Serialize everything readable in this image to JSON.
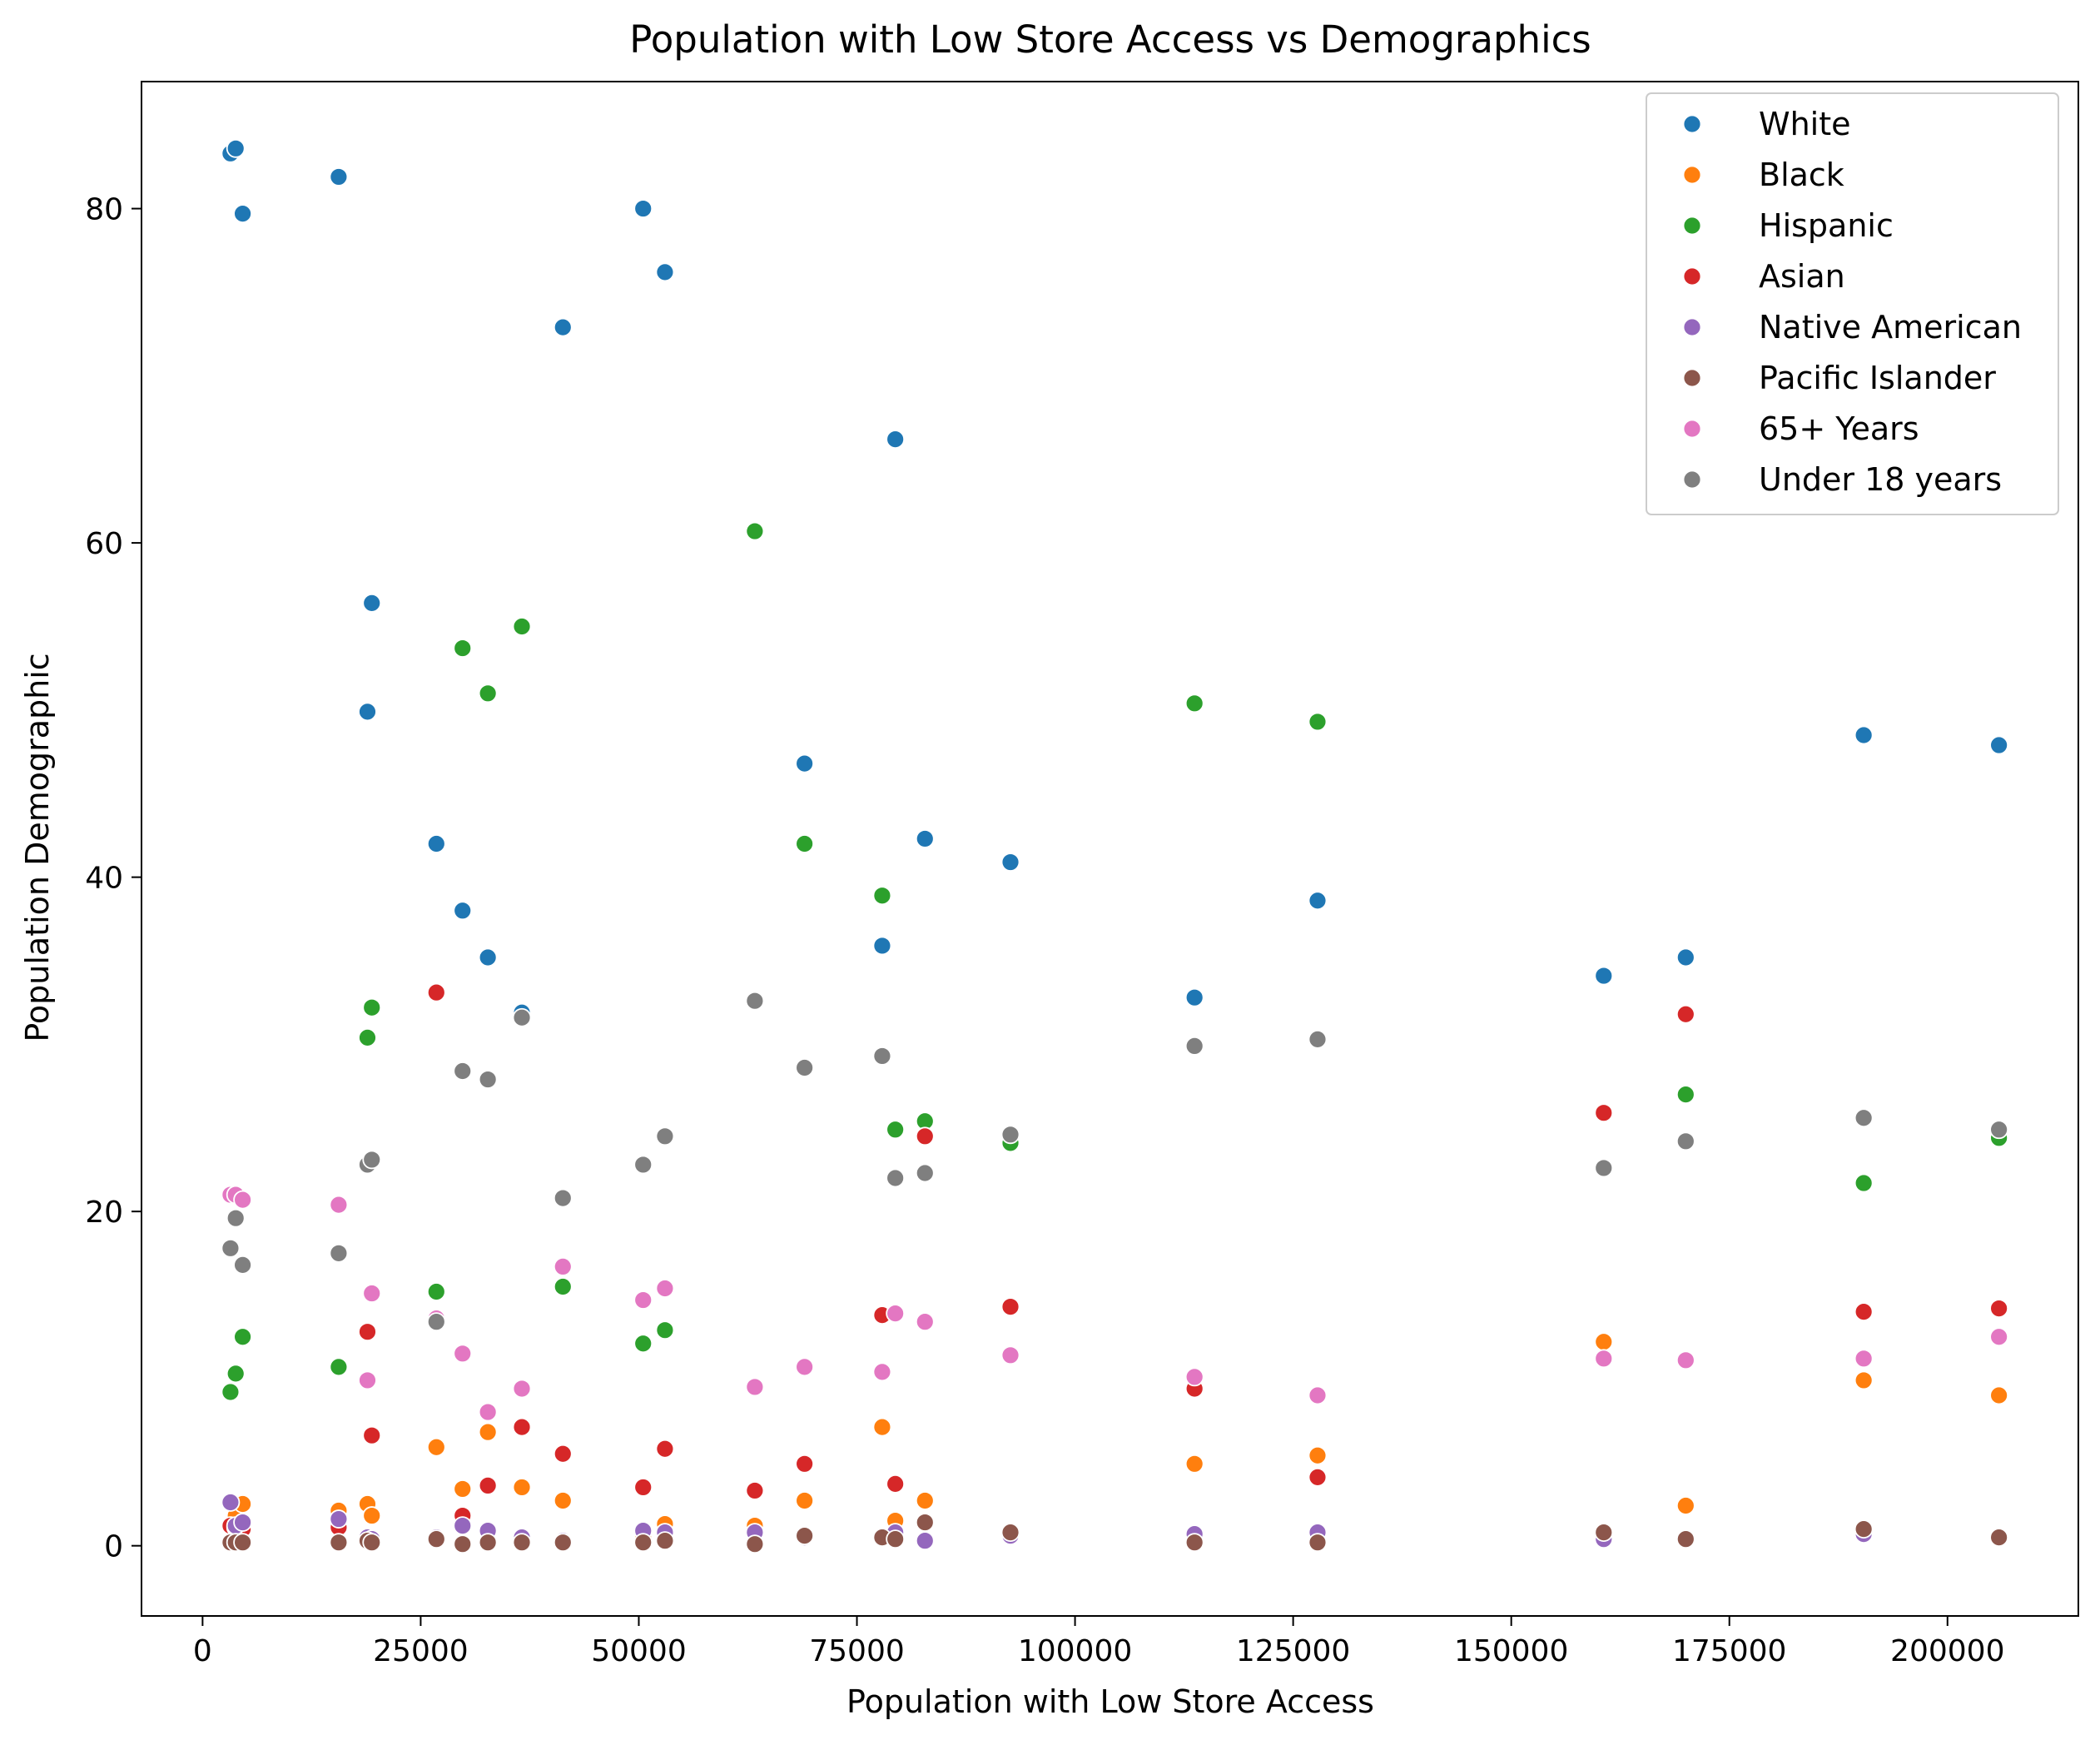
{
  "chart_data": {
    "type": "scatter",
    "title": "Population with Low Store Access vs Demographics",
    "xlabel": "Population with Low Store Access",
    "ylabel": "Population Demographic",
    "xlim": [
      -7000,
      215000
    ],
    "ylim": [
      -4.2,
      87.6
    ],
    "xticks": [
      0,
      25000,
      50000,
      75000,
      100000,
      125000,
      150000,
      175000,
      200000
    ],
    "xtick_labels": [
      "0",
      "25000",
      "50000",
      "75000",
      "100000",
      "125000",
      "150000",
      "175000",
      "200000"
    ],
    "yticks": [
      0,
      20,
      40,
      60,
      80
    ],
    "ytick_labels": [
      "0",
      "20",
      "40",
      "60",
      "80"
    ],
    "grid": false,
    "legend_position": "top-right",
    "x": [
      3200,
      3800,
      4600,
      15600,
      18900,
      19400,
      26800,
      29800,
      32700,
      36600,
      41300,
      50500,
      53000,
      63300,
      69000,
      77900,
      79400,
      82800,
      92600,
      113700,
      127800,
      160600,
      170000,
      190400,
      205900
    ],
    "series": [
      {
        "name": "White",
        "color": "#1f77b4",
        "values": [
          83.3,
          83.6,
          79.7,
          81.9,
          49.9,
          56.4,
          42.0,
          38.0,
          35.2,
          31.9,
          72.9,
          80.0,
          76.2,
          null,
          46.8,
          35.9,
          66.2,
          42.3,
          40.9,
          32.8,
          38.6,
          34.1,
          35.2,
          48.5,
          47.9
        ]
      },
      {
        "name": "Black",
        "color": "#ff7f0e",
        "values": [
          1.2,
          1.8,
          2.5,
          2.1,
          2.5,
          1.8,
          5.9,
          3.4,
          6.8,
          3.5,
          2.7,
          0.5,
          1.3,
          1.2,
          2.7,
          7.1,
          1.5,
          2.7,
          0.8,
          4.9,
          5.4,
          12.2,
          2.4,
          9.9,
          9.0
        ]
      },
      {
        "name": "Hispanic",
        "color": "#2ca02c",
        "values": [
          9.2,
          10.3,
          12.5,
          10.7,
          30.4,
          32.2,
          15.2,
          53.7,
          51.0,
          55.0,
          15.5,
          12.1,
          12.9,
          60.7,
          42.0,
          38.9,
          24.9,
          25.4,
          24.1,
          50.4,
          49.3,
          null,
          27.0,
          21.7,
          24.4
        ]
      },
      {
        "name": "Asian",
        "color": "#d62728",
        "values": [
          1.2,
          1.1,
          1.0,
          1.1,
          12.8,
          6.6,
          33.1,
          1.8,
          3.6,
          7.1,
          5.5,
          3.5,
          5.8,
          3.3,
          4.9,
          13.8,
          3.7,
          24.5,
          14.3,
          9.4,
          4.1,
          25.9,
          31.8,
          14.0,
          14.2
        ]
      },
      {
        "name": "Native American",
        "color": "#9467bd",
        "values": [
          2.6,
          1.2,
          1.4,
          1.6,
          0.5,
          0.4,
          0.5,
          1.2,
          0.9,
          0.5,
          0.3,
          0.9,
          0.8,
          0.8,
          0.5,
          0.5,
          0.8,
          0.3,
          0.6,
          0.7,
          0.8,
          0.4,
          0.4,
          0.7,
          0.5
        ]
      },
      {
        "name": "Pacific Islander",
        "color": "#8c564b",
        "values": [
          0.2,
          0.2,
          0.2,
          0.2,
          0.3,
          0.2,
          0.4,
          0.1,
          0.2,
          0.2,
          0.2,
          0.2,
          0.3,
          0.1,
          0.6,
          0.5,
          0.4,
          1.4,
          0.8,
          0.2,
          0.2,
          0.8,
          0.4,
          1.0,
          0.5
        ]
      },
      {
        "name": "65+ Years",
        "color": "#e377c2",
        "values": [
          21.0,
          21.0,
          20.7,
          20.4,
          9.9,
          15.1,
          13.6,
          11.5,
          8.0,
          9.4,
          16.7,
          14.7,
          15.4,
          9.5,
          10.7,
          10.4,
          13.9,
          13.4,
          11.4,
          10.1,
          9.0,
          11.2,
          11.1,
          11.2,
          12.5
        ]
      },
      {
        "name": "Under 18 years",
        "color": "#7f7f7f",
        "values": [
          17.8,
          19.6,
          16.8,
          17.5,
          22.8,
          23.1,
          13.4,
          28.4,
          27.9,
          31.6,
          20.8,
          22.8,
          24.5,
          32.6,
          28.6,
          29.3,
          22.0,
          22.3,
          24.6,
          29.9,
          30.3,
          22.6,
          24.2,
          25.6,
          24.9
        ]
      }
    ]
  }
}
